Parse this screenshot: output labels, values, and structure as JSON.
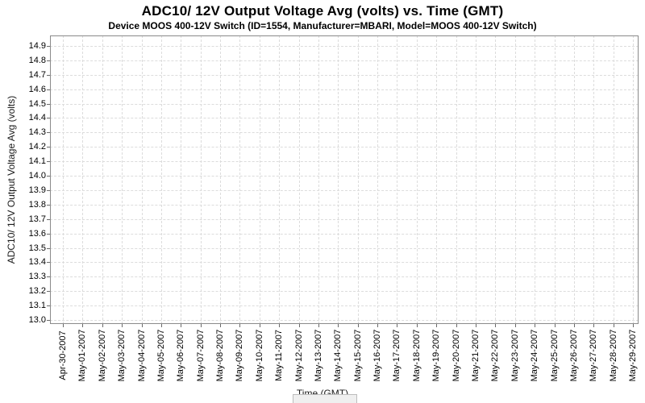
{
  "chart_data": {
    "type": "line",
    "title": "ADC10/ 12V Output Voltage Avg (volts) vs. Time (GMT)",
    "subtitle": "Device MOOS 400-12V Switch (ID=1554, Manufacturer=MBARI, Model=MOOS 400-12V Switch)",
    "xlabel": "Time (GMT)",
    "ylabel": "ADC10/ 12V Output Voltage Avg (volts)",
    "y_tick_labels": [
      "13.0",
      "13.1",
      "13.2",
      "13.3",
      "13.4",
      "13.5",
      "13.6",
      "13.7",
      "13.8",
      "13.9",
      "14.0",
      "14.1",
      "14.2",
      "14.3",
      "14.4",
      "14.5",
      "14.6",
      "14.7",
      "14.8",
      "14.9"
    ],
    "x_tick_labels": [
      "Apr-30-2007",
      "May-01-2007",
      "May-02-2007",
      "May-03-2007",
      "May-04-2007",
      "May-05-2007",
      "May-06-2007",
      "May-07-2007",
      "May-08-2007",
      "May-09-2007",
      "May-10-2007",
      "May-11-2007",
      "May-12-2007",
      "May-13-2007",
      "May-14-2007",
      "May-15-2007",
      "May-16-2007",
      "May-17-2007",
      "May-18-2007",
      "May-19-2007",
      "May-20-2007",
      "May-21-2007",
      "May-22-2007",
      "May-23-2007",
      "May-24-2007",
      "May-25-2007",
      "May-26-2007",
      "May-27-2007",
      "May-28-2007",
      "May-29-2007"
    ],
    "ylim": [
      12.972,
      14.972
    ],
    "series": [],
    "grid": "dashed",
    "legend_position": "bottom-center-empty"
  },
  "colors": {
    "background": "#ffffff",
    "plot_border": "#8a8a8a",
    "gridline": "#dcdcdc",
    "tick_mark": "#6b6b6b",
    "text": "#000000",
    "legend_fill": "#efefef",
    "legend_border": "#bdbdbd"
  }
}
